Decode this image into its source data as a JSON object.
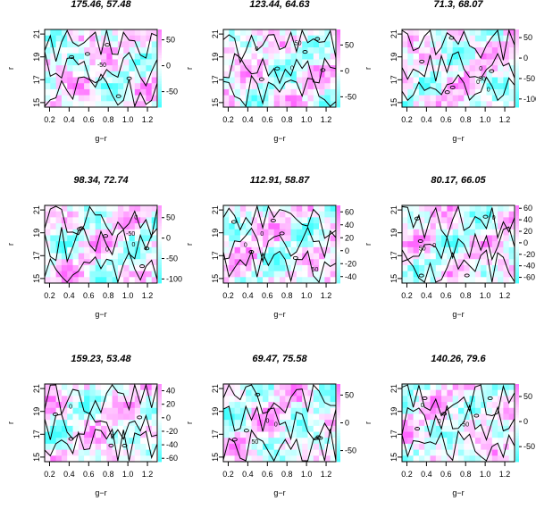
{
  "figure": {
    "panels": [
      {
        "title": "175.46, 57.48",
        "colorbar_ticks": [
          "50",
          "0",
          "-50"
        ],
        "colorbar_values": [
          50,
          0,
          -50
        ],
        "colorbar_range": [
          -80,
          70
        ],
        "contour_labels": [
          "-50"
        ]
      },
      {
        "title": "123.44, 64.63",
        "colorbar_ticks": [
          "50",
          "0",
          "-50"
        ],
        "colorbar_values": [
          50,
          0,
          -50
        ],
        "colorbar_range": [
          -70,
          80
        ],
        "contour_labels": [
          "0",
          "50",
          "0"
        ]
      },
      {
        "title": "71.3, 68.07",
        "colorbar_ticks": [
          "50",
          "0",
          "-50",
          "-100"
        ],
        "colorbar_values": [
          50,
          0,
          -50,
          -100
        ],
        "colorbar_range": [
          -120,
          70
        ],
        "contour_labels": [
          "0",
          "50",
          "0",
          "0"
        ]
      },
      {
        "title": "98.34, 72.74",
        "colorbar_ticks": [
          "50",
          "0",
          "-50",
          "-100"
        ],
        "colorbar_values": [
          50,
          0,
          -50,
          -100
        ],
        "colorbar_range": [
          -110,
          80
        ],
        "contour_labels": [
          "0",
          "-50",
          "0",
          "0"
        ]
      },
      {
        "title": "112.91, 58.87",
        "colorbar_ticks": [
          "60",
          "40",
          "20",
          "0",
          "-20",
          "-40"
        ],
        "colorbar_values": [
          60,
          40,
          20,
          0,
          -20,
          -40
        ],
        "colorbar_range": [
          -50,
          70
        ],
        "contour_labels": [
          "0",
          "50",
          "0"
        ]
      },
      {
        "title": "80.17, 66.05",
        "colorbar_ticks": [
          "60",
          "40",
          "20",
          "0",
          "-20",
          "-40",
          "-60"
        ],
        "colorbar_values": [
          60,
          40,
          20,
          0,
          -20,
          -40,
          -60
        ],
        "colorbar_range": [
          -70,
          65
        ],
        "contour_labels": [
          "0",
          "50",
          "0"
        ]
      },
      {
        "title": "159.23, 53.48",
        "colorbar_ticks": [
          "40",
          "20",
          "0",
          "-20",
          "-40",
          "-60"
        ],
        "colorbar_values": [
          40,
          20,
          0,
          -20,
          -40,
          -60
        ],
        "colorbar_range": [
          -65,
          50
        ],
        "contour_labels": [
          "0",
          "0"
        ]
      },
      {
        "title": "69.47, 75.58",
        "colorbar_ticks": [
          "50",
          "0",
          "-50"
        ],
        "colorbar_values": [
          50,
          0,
          -50
        ],
        "colorbar_range": [
          -70,
          70
        ],
        "contour_labels": [
          "0",
          "50",
          "0"
        ]
      },
      {
        "title": "140.26, 79.6",
        "colorbar_ticks": [
          "50",
          "0",
          "-50"
        ],
        "colorbar_values": [
          50,
          0,
          -50
        ],
        "colorbar_range": [
          -80,
          75
        ],
        "contour_labels": [
          "0",
          "0",
          "-50"
        ]
      }
    ],
    "colors": {
      "high": "#ff66ff",
      "mid": "#ffffff",
      "low": "#44ffff",
      "contour": "#000000"
    }
  },
  "chart_data": {
    "type": "heatmap",
    "xlabel": "g−r",
    "ylabel": "r",
    "x_ticks": [
      0.2,
      0.4,
      0.6,
      0.8,
      1.0,
      1.2
    ],
    "x_tick_labels": [
      "0.2",
      "0.4",
      "0.6",
      "0.8",
      "1.0",
      "1.2"
    ],
    "y_ticks": [
      15,
      17,
      19,
      21
    ],
    "y_tick_labels": [
      "15",
      "17",
      "19",
      "21"
    ],
    "xlim": [
      0.15,
      1.3
    ],
    "ylim": [
      14.6,
      21.4
    ],
    "legend": "colorbar on right of each panel",
    "grid": false,
    "panels": [
      {
        "title": "175.46, 57.48",
        "zlim": [
          -80,
          70
        ]
      },
      {
        "title": "123.44, 64.63",
        "zlim": [
          -70,
          80
        ]
      },
      {
        "title": "71.3, 68.07",
        "zlim": [
          -120,
          70
        ]
      },
      {
        "title": "98.34, 72.74",
        "zlim": [
          -110,
          80
        ]
      },
      {
        "title": "112.91, 58.87",
        "zlim": [
          -50,
          70
        ]
      },
      {
        "title": "80.17, 66.05",
        "zlim": [
          -70,
          65
        ]
      },
      {
        "title": "159.23, 53.48",
        "zlim": [
          -65,
          50
        ]
      },
      {
        "title": "69.47, 75.58",
        "zlim": [
          -70,
          70
        ]
      },
      {
        "title": "140.26, 79.6",
        "zlim": [
          -80,
          75
        ]
      }
    ]
  }
}
